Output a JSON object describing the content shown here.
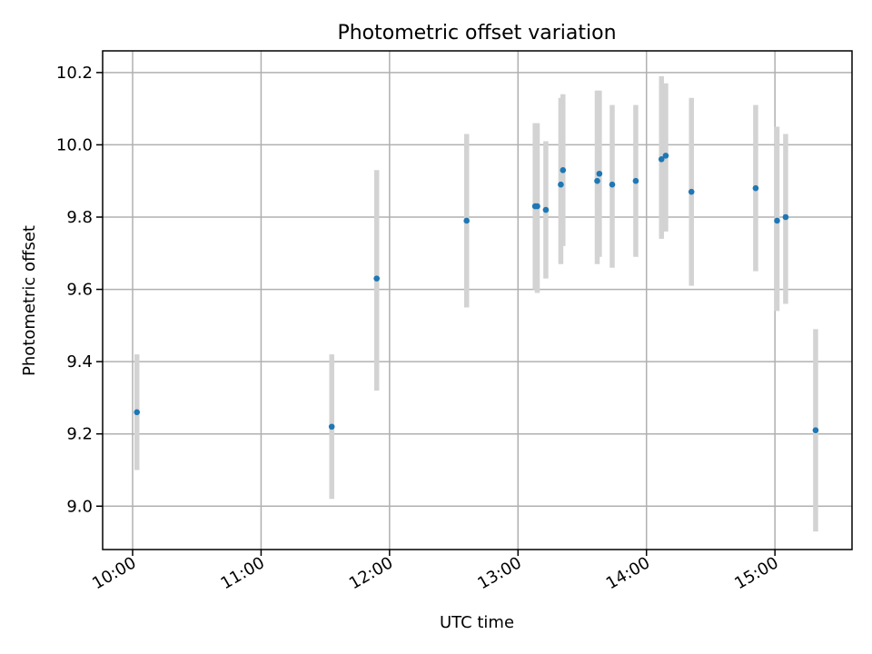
{
  "chart_data": {
    "type": "scatter",
    "title": "Photometric offset variation",
    "xlabel": "UTC time",
    "ylabel": "Photometric offset",
    "x_axis_kind": "time",
    "xlim": [
      "09:46",
      "15:36"
    ],
    "ylim": [
      8.88,
      10.26
    ],
    "x_ticks": [
      "10:00",
      "11:00",
      "12:00",
      "13:00",
      "14:00",
      "15:00"
    ],
    "y_ticks": [
      9.0,
      9.2,
      9.4,
      9.6,
      9.8,
      10.0,
      10.2
    ],
    "y_tick_labels": [
      "9.0",
      "9.2",
      "9.4",
      "9.6",
      "9.8",
      "10.0",
      "10.2"
    ],
    "grid": true,
    "marker_color": "#1f77b4",
    "errorbar_color": "#d3d3d3",
    "points": [
      {
        "x": "10:02",
        "y": 9.26,
        "yerr": [
          9.1,
          9.42
        ]
      },
      {
        "x": "11:33",
        "y": 9.22,
        "yerr": [
          9.02,
          9.42
        ]
      },
      {
        "x": "11:54",
        "y": 9.63,
        "yerr": [
          9.32,
          9.93
        ]
      },
      {
        "x": "12:36",
        "y": 9.79,
        "yerr": [
          9.55,
          10.03
        ]
      },
      {
        "x": "13:08",
        "y": 9.83,
        "yerr": [
          9.6,
          10.06
        ]
      },
      {
        "x": "13:09",
        "y": 9.83,
        "yerr": [
          9.59,
          10.06
        ]
      },
      {
        "x": "13:13",
        "y": 9.82,
        "yerr": [
          9.63,
          10.01
        ]
      },
      {
        "x": "13:20",
        "y": 9.89,
        "yerr": [
          9.67,
          10.13
        ]
      },
      {
        "x": "13:21",
        "y": 9.93,
        "yerr": [
          9.72,
          10.14
        ]
      },
      {
        "x": "13:37",
        "y": 9.9,
        "yerr": [
          9.67,
          10.15
        ]
      },
      {
        "x": "13:38",
        "y": 9.92,
        "yerr": [
          9.69,
          10.15
        ]
      },
      {
        "x": "13:44",
        "y": 9.89,
        "yerr": [
          9.66,
          10.11
        ]
      },
      {
        "x": "13:55",
        "y": 9.9,
        "yerr": [
          9.69,
          10.11
        ]
      },
      {
        "x": "14:07",
        "y": 9.96,
        "yerr": [
          9.74,
          10.19
        ]
      },
      {
        "x": "14:09",
        "y": 9.97,
        "yerr": [
          9.76,
          10.17
        ]
      },
      {
        "x": "14:21",
        "y": 9.87,
        "yerr": [
          9.61,
          10.13
        ]
      },
      {
        "x": "14:51",
        "y": 9.88,
        "yerr": [
          9.65,
          10.11
        ]
      },
      {
        "x": "15:01",
        "y": 9.79,
        "yerr": [
          9.54,
          10.05
        ]
      },
      {
        "x": "15:05",
        "y": 9.8,
        "yerr": [
          9.56,
          10.03
        ]
      },
      {
        "x": "15:19",
        "y": 9.21,
        "yerr": [
          8.93,
          9.49
        ]
      }
    ]
  }
}
